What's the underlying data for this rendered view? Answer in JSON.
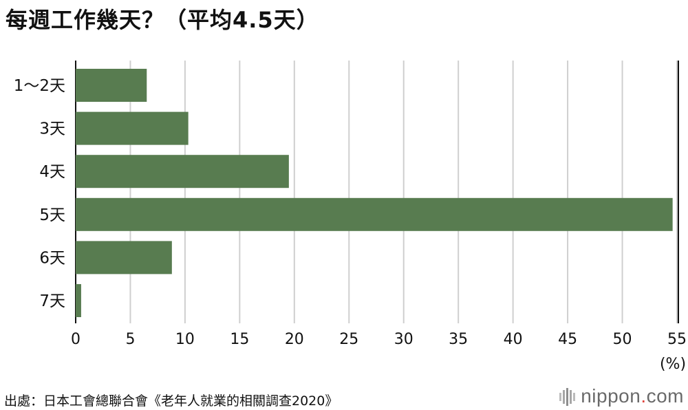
{
  "title": "每週工作幾天？（平均4.5天）",
  "source": "出處：日本工會總聯合會《老年人就業的相關調查2020》",
  "logo": {
    "name": "nippon",
    "dot": ".",
    "suffix": "com",
    "icon": "nippon-bars-icon"
  },
  "colors": {
    "bar": "#587c50",
    "grid": "#cfcfcf",
    "axis": "#111111",
    "accent": "#e0423a"
  },
  "chart_data": {
    "type": "bar",
    "orientation": "horizontal",
    "categories": [
      "1～2天",
      "3天",
      "4天",
      "5天",
      "6天",
      "7天"
    ],
    "values": [
      6.5,
      10.3,
      19.5,
      54.6,
      8.8,
      0.5
    ],
    "xlim": [
      0,
      55
    ],
    "xticks": [
      0,
      5,
      10,
      15,
      20,
      25,
      30,
      35,
      40,
      45,
      50,
      55
    ],
    "xunit": "(%)",
    "grid": true
  }
}
